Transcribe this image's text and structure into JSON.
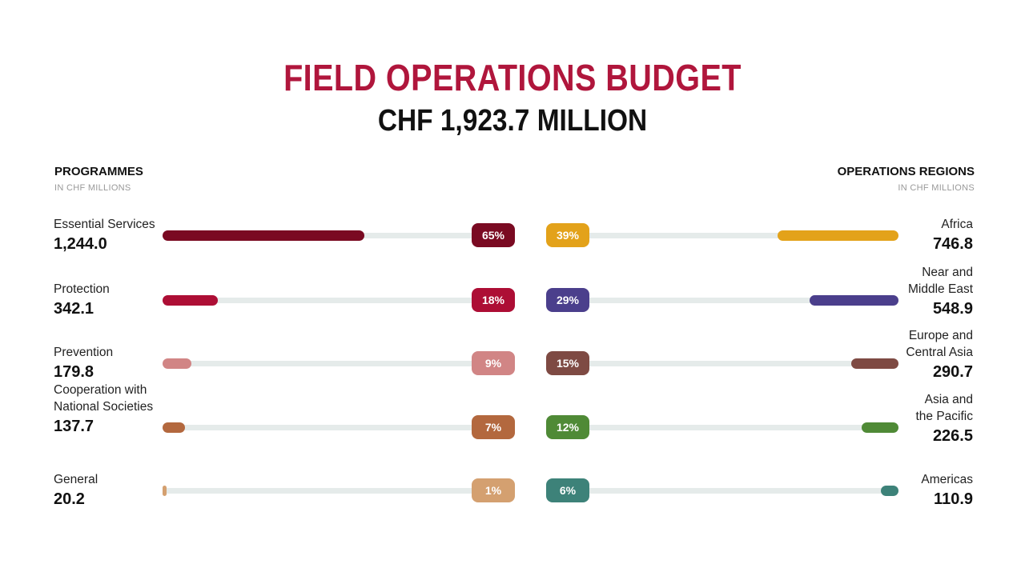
{
  "title": "FIELD OPERATIONS BUDGET",
  "subtitle": "CHF 1,923.7 MILLION",
  "chart_data": [
    {
      "type": "bar",
      "title": "PROGRAMMES",
      "subtitle": "IN CHF MILLIONS",
      "categories": [
        "Essential Services",
        "Protection",
        "Prevention",
        "Cooperation with National Societies",
        "General"
      ],
      "label_lines": [
        [
          "Essential Services"
        ],
        [
          "Protection"
        ],
        [
          "Prevention"
        ],
        [
          "Cooperation with",
          "National Societies"
        ],
        [
          "General"
        ]
      ],
      "values": [
        1244.0,
        342.1,
        179.8,
        137.7,
        20.2
      ],
      "value_labels": [
        "1,244.0",
        "342.1",
        "179.8",
        "137.7",
        "20.2"
      ],
      "percentages": [
        "65%",
        "18%",
        "9%",
        "7%",
        "1%"
      ],
      "colors": [
        "#7a0a22",
        "#ad0e35",
        "#d18585",
        "#b3683e",
        "#d4a070"
      ],
      "orientation": "grows-right",
      "xlim": [
        0,
        1244.0
      ]
    },
    {
      "type": "bar",
      "title": "OPERATIONS REGIONS",
      "subtitle": "IN CHF MILLIONS",
      "categories": [
        "Africa",
        "Near and Middle East",
        "Europe and Central Asia",
        "Asia and the Pacific",
        "Americas"
      ],
      "label_lines": [
        [
          "Africa"
        ],
        [
          "Near and",
          "Middle East"
        ],
        [
          "Europe and",
          "Central Asia"
        ],
        [
          "Asia and",
          "the Pacific"
        ],
        [
          "Americas"
        ]
      ],
      "values": [
        746.8,
        548.9,
        290.7,
        226.5,
        110.9
      ],
      "value_labels": [
        "746.8",
        "548.9",
        "290.7",
        "226.5",
        "110.9"
      ],
      "percentages": [
        "39%",
        "29%",
        "15%",
        "12%",
        "6%"
      ],
      "colors": [
        "#e3a21a",
        "#4b3f8c",
        "#7e4a43",
        "#4f8a36",
        "#3d8279"
      ],
      "orientation": "grows-left",
      "xlim": [
        0,
        1244.0
      ]
    }
  ]
}
